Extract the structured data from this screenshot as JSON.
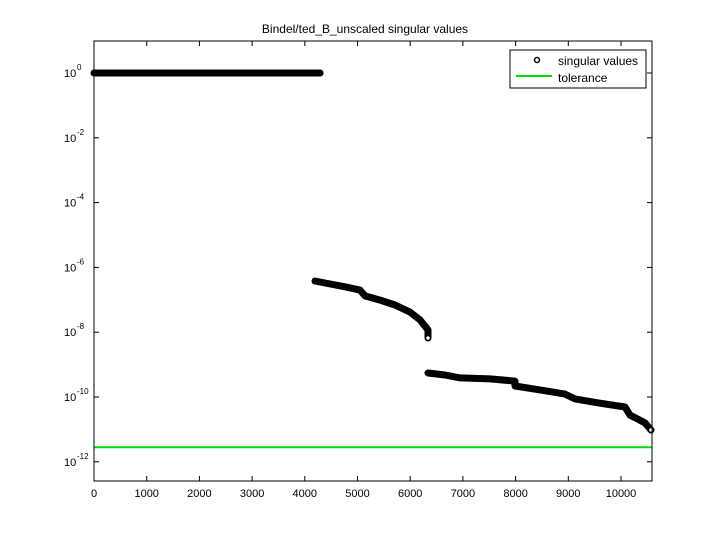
{
  "chart_data": {
    "type": "scatter",
    "title": "Bindel/ted_B_unscaled singular values",
    "xlabel": "",
    "ylabel": "",
    "xscale": "linear",
    "yscale": "log",
    "xlim": [
      0,
      10600
    ],
    "ylim_log10": [
      1,
      -12.5
    ],
    "grid": false,
    "legend_position": "upper right",
    "x_ticks": [
      0,
      1000,
      2000,
      3000,
      4000,
      5000,
      6000,
      7000,
      8000,
      9000,
      10000
    ],
    "x_tick_labels": [
      "0",
      "1000",
      "2000",
      "3000",
      "4000",
      "5000",
      "6000",
      "7000",
      "8000",
      "9000",
      "10000"
    ],
    "y_ticks_log10": [
      0,
      -2,
      -4,
      -6,
      -8,
      -10,
      -12
    ],
    "y_tick_labels": [
      {
        "base": "10",
        "exp": "0"
      },
      {
        "base": "10",
        "exp": "-2"
      },
      {
        "base": "10",
        "exp": "-4"
      },
      {
        "base": "10",
        "exp": "-6"
      },
      {
        "base": "10",
        "exp": "-8"
      },
      {
        "base": "10",
        "exp": "-10"
      },
      {
        "base": "10",
        "exp": "-12"
      }
    ],
    "series": [
      {
        "name": "singular values",
        "marker": "circle-open",
        "color": "#000000",
        "segments": [
          {
            "x": [
              0,
              4290
            ],
            "log10_y": [
              0.0,
              0.0
            ]
          },
          {
            "x": [
              4193,
              4383,
              4763,
              5047,
              5142,
              5427,
              5712,
              5996,
              6186,
              6338,
              6338
            ],
            "log10_y": [
              -6.42,
              -6.48,
              -6.6,
              -6.7,
              -6.88,
              -7.01,
              -7.16,
              -7.38,
              -7.62,
              -7.93,
              -8.18
            ]
          },
          {
            "x": [
              6338,
              6660,
              6945,
              7514,
              7989,
              7989,
              8463,
              8937,
              9127,
              9602,
              10076,
              10171,
              10455,
              10569
            ],
            "log10_y": [
              -9.26,
              -9.32,
              -9.41,
              -9.44,
              -9.51,
              -9.66,
              -9.78,
              -9.91,
              -10.06,
              -10.19,
              -10.31,
              -10.56,
              -10.8,
              -11.02
            ]
          }
        ]
      },
      {
        "name": "tolerance",
        "marker": "line",
        "color": "#00e000",
        "x": [
          0,
          10600
        ],
        "log10_y": [
          -11.55,
          -11.55
        ]
      }
    ]
  },
  "legend": {
    "items": [
      {
        "label": "singular values"
      },
      {
        "label": "tolerance"
      }
    ]
  }
}
